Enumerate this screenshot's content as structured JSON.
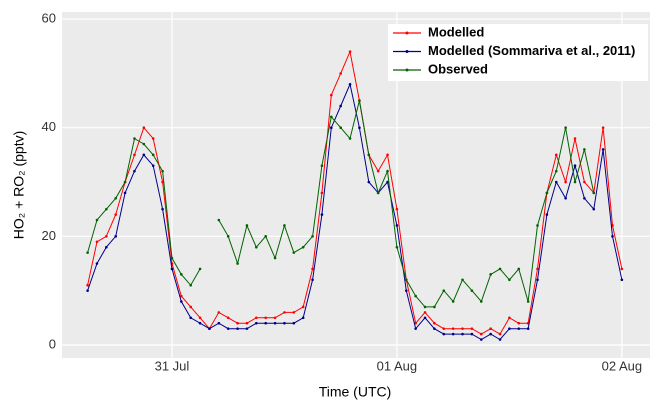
{
  "chart_data": {
    "type": "line",
    "x_label": "Time (UTC)",
    "y_label": "HO₂ + RO₂  (pptv)",
    "x": [
      15,
      16,
      17,
      18,
      19,
      20,
      21,
      22,
      23,
      24,
      25,
      26,
      27,
      28,
      29,
      30,
      31,
      32,
      33,
      34,
      35,
      36,
      37,
      38,
      39,
      40,
      41,
      42,
      43,
      44,
      45,
      46,
      47,
      48,
      49,
      50,
      51,
      52,
      53,
      54,
      55,
      56,
      57,
      58,
      59,
      60,
      61,
      62,
      63,
      64,
      65,
      66,
      67,
      68,
      69,
      70,
      71,
      72
    ],
    "series": [
      {
        "name": "Modelled",
        "color": "#ff0000",
        "values": [
          11,
          19,
          20,
          24,
          30,
          35,
          40,
          38,
          30,
          15,
          9,
          7,
          5,
          3,
          6,
          5,
          4,
          4,
          5,
          5,
          5,
          6,
          6,
          7,
          14,
          28,
          46,
          50,
          54,
          45,
          35,
          32,
          35,
          25,
          12,
          4,
          6,
          4,
          3,
          3,
          3,
          3,
          2,
          3,
          2,
          5,
          4,
          4,
          14,
          28,
          35,
          30,
          38,
          30,
          28,
          40,
          22,
          14
        ]
      },
      {
        "name": "Modelled (Sommariva et al., 2011)",
        "color": "#00008b",
        "values": [
          10,
          15,
          18,
          20,
          28,
          32,
          35,
          33,
          25,
          14,
          8,
          5,
          4,
          3,
          4,
          3,
          3,
          3,
          4,
          4,
          4,
          4,
          4,
          5,
          12,
          24,
          40,
          44,
          48,
          40,
          30,
          28,
          30,
          22,
          10,
          3,
          5,
          3,
          2,
          2,
          2,
          2,
          1,
          2,
          1,
          3,
          3,
          3,
          12,
          24,
          30,
          27,
          33,
          27,
          25,
          36,
          20,
          12
        ]
      },
      {
        "name": "Observed",
        "color": "#006400",
        "values": [
          17,
          23,
          25,
          27,
          30,
          38,
          37,
          35,
          32,
          16,
          13,
          11,
          14,
          null,
          23,
          20,
          15,
          22,
          18,
          20,
          16,
          22,
          17,
          18,
          20,
          33,
          42,
          40,
          38,
          45,
          35,
          28,
          32,
          18,
          12,
          9,
          7,
          7,
          10,
          8,
          12,
          10,
          8,
          13,
          14,
          12,
          14,
          8,
          22,
          28,
          32,
          40,
          30,
          36,
          28,
          null,
          null,
          null
        ]
      }
    ],
    "xlim": [
      12.27,
      75
    ],
    "xticks": [
      {
        "value": 24,
        "label": "31 Jul"
      },
      {
        "value": 48,
        "label": "01 Aug"
      },
      {
        "value": 72,
        "label": "02 Aug"
      }
    ],
    "ylim": [
      -2.4,
      61.3
    ],
    "yticks": [
      0,
      20,
      40,
      60
    ],
    "grid": true,
    "legend": "top-right"
  }
}
